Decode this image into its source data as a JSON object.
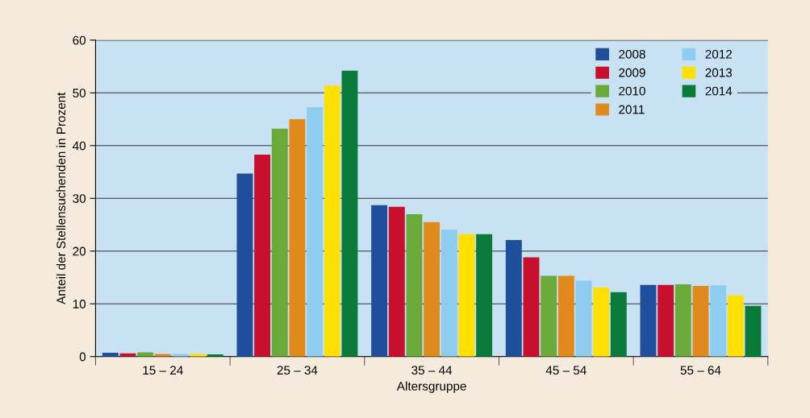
{
  "chart_data": {
    "type": "bar",
    "xlabel": "Altersgruppe",
    "ylabel": "Anteil der Stellensuchenden in Prozent",
    "categories": [
      "15 – 24",
      "25 – 34",
      "35 – 44",
      "45 – 54",
      "55 – 64"
    ],
    "series": [
      {
        "name": "2008",
        "color": "#1f4e9c",
        "values": [
          0.7,
          34.7,
          28.7,
          22.1,
          13.6
        ]
      },
      {
        "name": "2009",
        "color": "#c8102e",
        "values": [
          0.6,
          38.3,
          28.4,
          18.8,
          13.6
        ]
      },
      {
        "name": "2010",
        "color": "#6aaa3a",
        "values": [
          0.8,
          43.2,
          27.0,
          15.3,
          13.7
        ]
      },
      {
        "name": "2011",
        "color": "#e08a1e",
        "values": [
          0.5,
          45.0,
          25.5,
          15.3,
          13.4
        ]
      },
      {
        "name": "2012",
        "color": "#8ecdf0",
        "values": [
          0.5,
          47.3,
          24.1,
          14.4,
          13.5
        ]
      },
      {
        "name": "2013",
        "color": "#ffe000",
        "values": [
          0.5,
          51.4,
          23.2,
          13.1,
          11.6
        ]
      },
      {
        "name": "2014",
        "color": "#0a7a3a",
        "values": [
          0.4,
          54.2,
          23.2,
          12.2,
          9.6
        ]
      }
    ],
    "ylim": [
      0,
      60
    ],
    "yticks": [
      0,
      10,
      20,
      30,
      40,
      50,
      60
    ],
    "grid": "y",
    "legend": "top right"
  }
}
